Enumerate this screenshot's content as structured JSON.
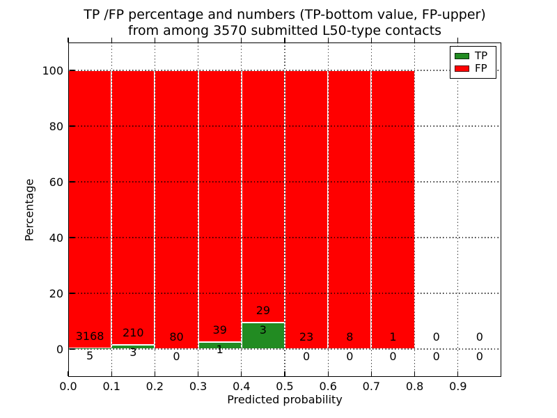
{
  "chart_data": {
    "type": "bar",
    "stacked": true,
    "title_line1": "TP /FP percentage and numbers (TP-bottom value, FP-upper)",
    "title_line2": "from among 3570 submitted L50-type contacts",
    "total_submitted_contacts": 3570,
    "xlabel": "Predicted probability",
    "ylabel": "Percentage",
    "xlim": [
      0.0,
      1.0
    ],
    "ylim": [
      -10,
      110
    ],
    "grid": true,
    "grid_style": "dotted",
    "xticks": [
      "0.0",
      "0.1",
      "0.2",
      "0.3",
      "0.4",
      "0.5",
      "0.6",
      "0.7",
      "0.8",
      "0.9"
    ],
    "yticks": [
      "0",
      "20",
      "40",
      "60",
      "80",
      "100"
    ],
    "ytick_values": [
      0,
      20,
      40,
      60,
      80,
      100
    ],
    "colors": {
      "tp": "#228B22",
      "fp": "#FF0000",
      "bar_edge": "#FFFFFF"
    },
    "legend": {
      "position": "upper-right",
      "entries": [
        {
          "label": "TP",
          "color": "#228B22"
        },
        {
          "label": "FP",
          "color": "#FF0000"
        }
      ]
    },
    "bins": [
      {
        "range": [
          0.0,
          0.1
        ],
        "tp": 5,
        "fp": 3168,
        "tp_pct": 0.16,
        "has_bar": true
      },
      {
        "range": [
          0.1,
          0.2
        ],
        "tp": 3,
        "fp": 210,
        "tp_pct": 1.41,
        "has_bar": true
      },
      {
        "range": [
          0.2,
          0.3
        ],
        "tp": 0,
        "fp": 80,
        "tp_pct": 0.0,
        "has_bar": true
      },
      {
        "range": [
          0.3,
          0.4
        ],
        "tp": 1,
        "fp": 39,
        "tp_pct": 2.5,
        "has_bar": true
      },
      {
        "range": [
          0.4,
          0.5
        ],
        "tp": 3,
        "fp": 29,
        "tp_pct": 9.38,
        "has_bar": true
      },
      {
        "range": [
          0.5,
          0.6
        ],
        "tp": 0,
        "fp": 23,
        "tp_pct": 0.0,
        "has_bar": true
      },
      {
        "range": [
          0.6,
          0.7
        ],
        "tp": 0,
        "fp": 8,
        "tp_pct": 0.0,
        "has_bar": true
      },
      {
        "range": [
          0.7,
          0.8
        ],
        "tp": 0,
        "fp": 1,
        "tp_pct": 0.0,
        "has_bar": true
      },
      {
        "range": [
          0.8,
          0.9
        ],
        "tp": 0,
        "fp": 0,
        "tp_pct": 0.0,
        "has_bar": false
      },
      {
        "range": [
          0.9,
          1.0
        ],
        "tp": 0,
        "fp": 0,
        "tp_pct": 0.0,
        "has_bar": false
      }
    ]
  }
}
